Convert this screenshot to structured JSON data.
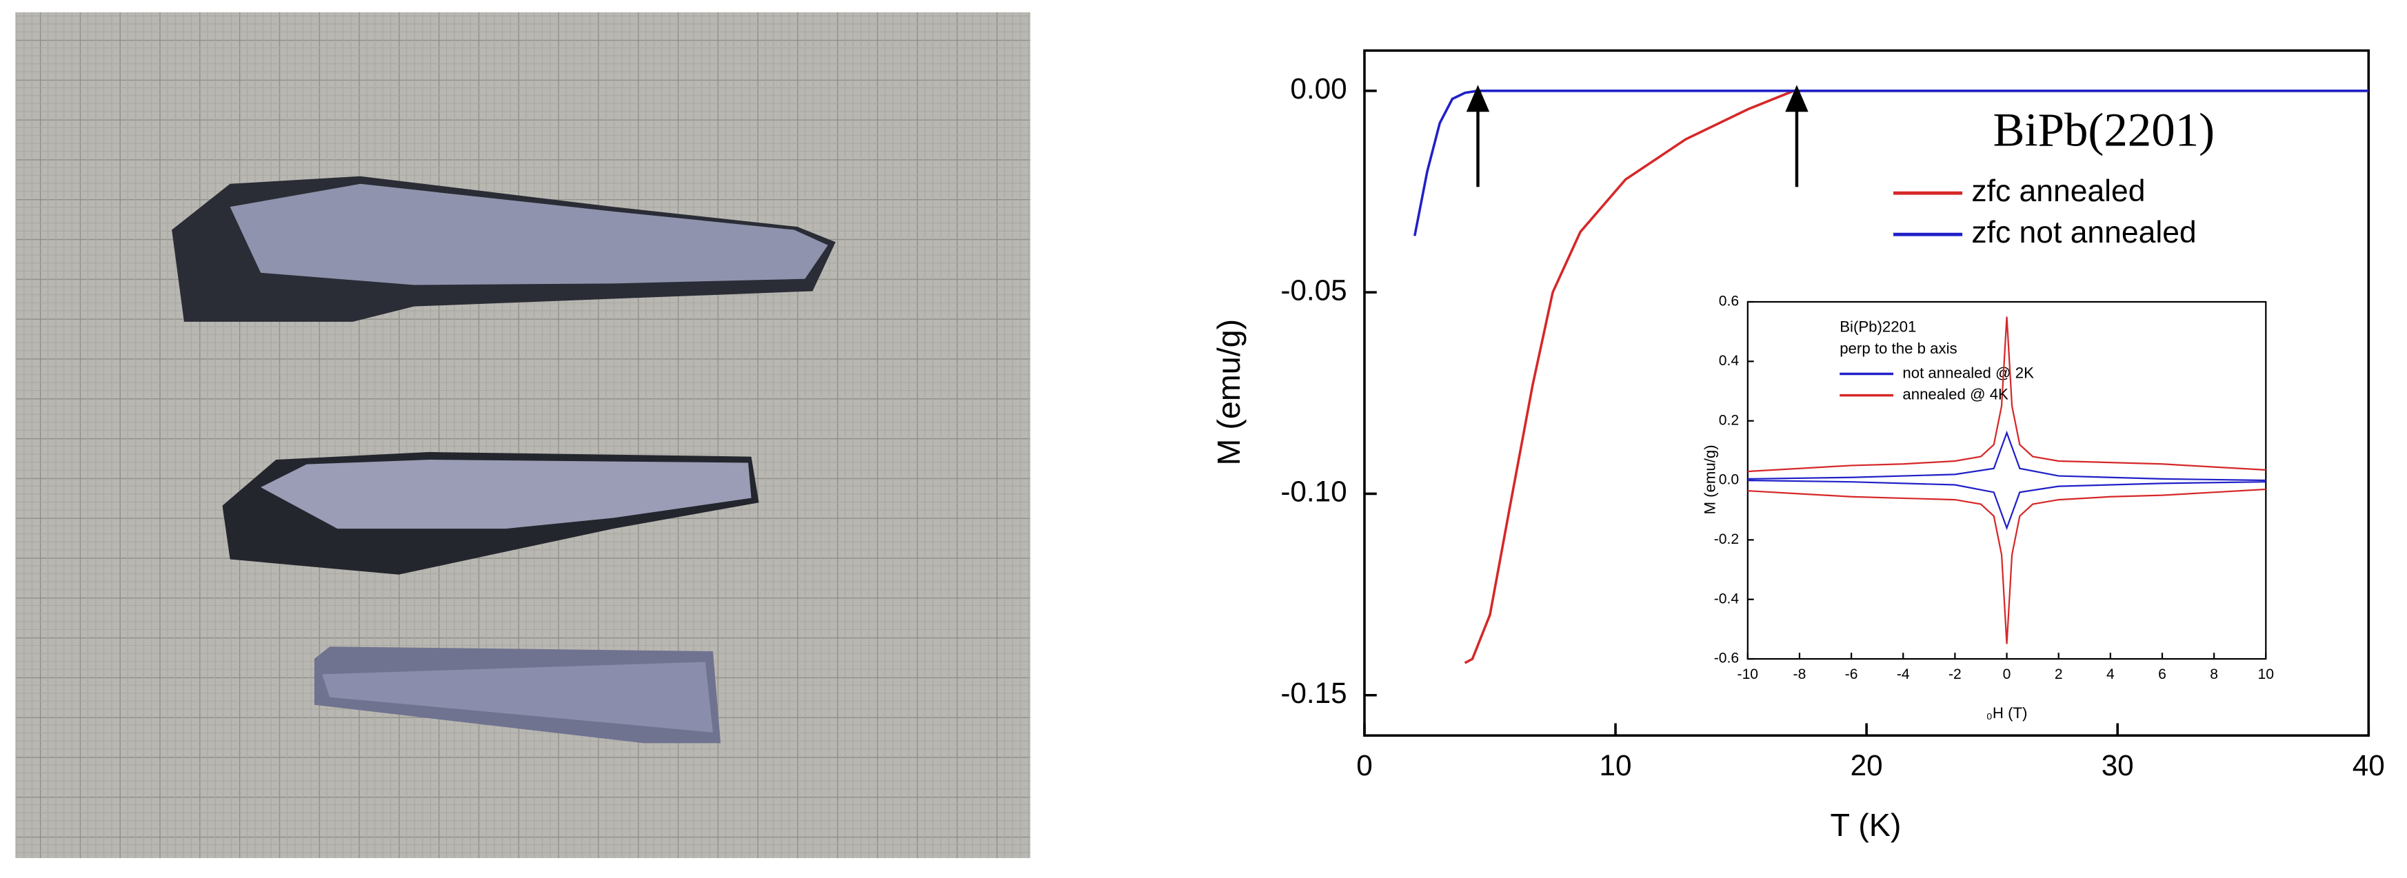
{
  "chart_data": [
    {
      "type": "line",
      "x_label": "T (K)",
      "y_label": "M (emu/g)",
      "annotation": "BiPb(2201)",
      "legend": "upper right",
      "xlim": [
        0,
        40
      ],
      "ylim": [
        -0.16,
        0.01
      ],
      "xticks": [
        0,
        10,
        20,
        30,
        40
      ],
      "yticks": [
        {
          "value": 0,
          "label": "0.00"
        },
        {
          "value": -0.05,
          "label": "-0.05"
        },
        {
          "value": -0.1,
          "label": "-0.10"
        },
        {
          "value": -0.15,
          "label": "-0.15"
        }
      ],
      "series": [
        {
          "name": "zfc annealed",
          "color": "#d62728",
          "x": [
            4,
            4.3,
            5,
            5.8,
            6.7,
            7.5,
            8.6,
            10.4,
            12.8,
            15.3,
            17.1,
            20,
            30,
            40
          ],
          "values": [
            -0.142,
            -0.141,
            -0.13,
            -0.103,
            -0.073,
            -0.05,
            -0.035,
            -0.022,
            -0.012,
            -0.0045,
            0,
            0,
            0,
            0
          ]
        },
        {
          "name": "zfc not annealed",
          "color": "#2020c8",
          "x": [
            2,
            2.5,
            3,
            3.5,
            4,
            4.5,
            10,
            20,
            30,
            40
          ],
          "values": [
            -0.036,
            -0.02,
            -0.008,
            -0.002,
            -0.0005,
            0,
            0,
            0,
            0,
            0
          ]
        }
      ]
    },
    {
      "type": "line",
      "x_label": "₀H (T)",
      "y_label": "M (emu/g)",
      "annotations": [
        "Bi(Pb)2201",
        "perp to the b axis"
      ],
      "legend": "upper left",
      "xlim": [
        -10,
        10
      ],
      "ylim": [
        -0.6,
        0.6
      ],
      "xticks": [
        -10,
        -8,
        -6,
        -4,
        -2,
        0,
        2,
        4,
        6,
        8,
        10
      ],
      "yticks": [
        0.6,
        0.4,
        0.2,
        {
          "value": 0,
          "label": "0.0"
        },
        -0.2,
        -0.4,
        -0.6
      ],
      "series": [
        {
          "name": "not annealed @ 2K",
          "color": "#2020c8",
          "x": [
            -10,
            -6,
            -2,
            -0.5,
            0,
            0.5,
            2,
            6,
            10,
            null,
            -10,
            -6,
            -2,
            -0.5,
            0,
            0.5,
            2,
            6,
            10
          ],
          "values": [
            0.005,
            0.01,
            0.02,
            0.04,
            0.16,
            0.04,
            0.015,
            0.005,
            0,
            null,
            0,
            -0.005,
            -0.015,
            -0.04,
            -0.16,
            -0.04,
            -0.02,
            -0.01,
            -0.005
          ]
        },
        {
          "name": "annealed @ 4K",
          "color": "#d62728",
          "x": [
            -10,
            -8,
            -6,
            -4,
            -2,
            -1,
            -0.5,
            -0.2,
            0,
            0.2,
            0.5,
            1,
            2,
            4,
            6,
            8,
            10,
            null,
            -10,
            -8,
            -6,
            -4,
            -2,
            -1,
            -0.5,
            -0.2,
            0,
            0.2,
            0.5,
            1,
            2,
            4,
            6,
            8,
            10
          ],
          "values": [
            0.03,
            0.04,
            0.05,
            0.055,
            0.065,
            0.08,
            0.12,
            0.25,
            0.55,
            0.25,
            0.12,
            0.08,
            0.065,
            0.06,
            0.055,
            0.045,
            0.035,
            null,
            -0.035,
            -0.045,
            -0.055,
            -0.06,
            -0.065,
            -0.08,
            -0.12,
            -0.25,
            -0.55,
            -0.25,
            -0.12,
            -0.08,
            -0.065,
            -0.055,
            -0.05,
            -0.04,
            -0.03
          ]
        }
      ]
    }
  ]
}
